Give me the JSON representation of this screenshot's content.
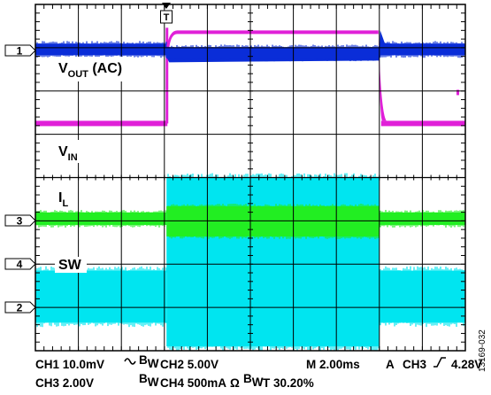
{
  "chart_data": {
    "type": "line",
    "trigger_marker": "T",
    "grid": {
      "divisions_x": 10,
      "divisions_y": 8,
      "on": true
    },
    "channel_markers": [
      "1",
      "3",
      "4",
      "2"
    ],
    "traces": [
      {
        "channel": 1,
        "label_main": "V",
        "label_sub": "OUT",
        "label_rest": " (AC)",
        "color": "#0a2dd8",
        "display": "noise band, dips at input step up and recovers at input step down"
      },
      {
        "channel": 2,
        "label_main": "V",
        "label_sub": "IN",
        "color": "#e020d8",
        "display": "step high from ~3.0 to ~8.8 divisions"
      },
      {
        "channel": 3,
        "label_main": "I",
        "label_sub": "L",
        "color": "#22ee22",
        "display": "noise band, widens during high input"
      },
      {
        "channel": 4,
        "label_main": "SW",
        "color": "#00e5f0",
        "display": "switching node, dense fill; band rises during high input"
      }
    ],
    "settings": {
      "ch1": "CH1 10.0mV",
      "ch2": "CH2  5.00V",
      "ch3": "CH3 2.00V",
      "ch4": "CH4  500mA",
      "bw": "B",
      "bw_sub": "W",
      "timebase": "M 2.00ms",
      "trigger_mode": "A",
      "trigger_src": "CH3",
      "trigger_level": "4.28V",
      "trigger_pos": "T 30.20%"
    },
    "figure_id": "13169-032"
  },
  "colors": {
    "blue": "#0a2dd8",
    "magenta": "#e020d8",
    "green": "#22ee22",
    "cyan": "#00e5f0",
    "grid": "#000000"
  }
}
